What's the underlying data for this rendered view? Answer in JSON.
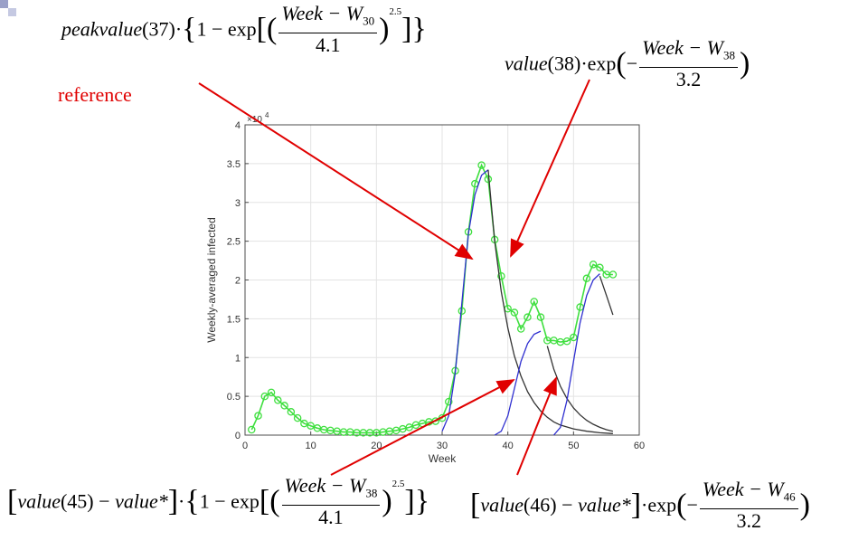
{
  "annotations": {
    "f1": {
      "fn": "peakvalue",
      "arg": "(37)",
      "dot": "·",
      "one_minus": "1 − exp",
      "frac_num_a": "Week",
      "frac_num_b": "− W",
      "frac_num_sub": "30",
      "frac_den": "4.1",
      "exponent": "2.5"
    },
    "f2": {
      "fn": "value",
      "arg": "(38)",
      "dot": "·",
      "exp": "exp",
      "neg": "−",
      "frac_num_a": "Week",
      "frac_num_b": "− W",
      "frac_num_sub": "38",
      "frac_den": "3.2"
    },
    "f3": {
      "fn_a": "value",
      "arg_a": "(45)",
      "minus": " − ",
      "fn_b": "value*",
      "dot": "·",
      "one_minus": "1 − exp",
      "frac_num_a": "Week",
      "frac_num_b": "− W",
      "frac_num_sub": "38",
      "frac_den": "4.1",
      "exponent": "2.5"
    },
    "f4": {
      "fn_a": "value",
      "arg_a": "(46)",
      "minus": " − ",
      "fn_b": "value*",
      "dot": "·",
      "exp": "exp",
      "neg": "−",
      "frac_num_a": "Week",
      "frac_num_b": "− W",
      "frac_num_sub": "46",
      "frac_den": "3.2"
    },
    "reference": "reference"
  },
  "colors": {
    "data_line": "#3fdf3f",
    "fit_blue": "#2f2fd0",
    "fit_black": "#333333",
    "arrow_red": "#e00000"
  },
  "chart_data": {
    "type": "line",
    "xlabel": "Week",
    "ylabel": "Weekly-averaged infected",
    "y_exponent_label": "×10",
    "y_exponent_power": "4",
    "xlim": [
      0,
      60
    ],
    "ylim": [
      0,
      4
    ],
    "y_unit_multiplier": 10000,
    "xticks": [
      0,
      10,
      20,
      30,
      40,
      50,
      60
    ],
    "yticks": [
      0,
      0.5,
      1,
      1.5,
      2,
      2.5,
      3,
      3.5,
      4
    ],
    "ytick_labels": [
      "0",
      "0.5",
      "1",
      "1.5",
      "2",
      "2.5",
      "3",
      "3.5",
      "4"
    ],
    "grid": true,
    "series": [
      {
        "style": "markers",
        "x": [
          1,
          2,
          3,
          4,
          5,
          6,
          7,
          8,
          9,
          10,
          11,
          12,
          13,
          14,
          15,
          16,
          17,
          18,
          19,
          20,
          21,
          22,
          23,
          24,
          25,
          26,
          27,
          28,
          29,
          30,
          31,
          32,
          33,
          34,
          35,
          36,
          37,
          38,
          39,
          40,
          41,
          42,
          43,
          44,
          45,
          46,
          47,
          48,
          49,
          50,
          51,
          52,
          53,
          54,
          55,
          56
        ],
        "y": [
          0.07,
          0.25,
          0.5,
          0.55,
          0.45,
          0.38,
          0.3,
          0.22,
          0.15,
          0.12,
          0.09,
          0.07,
          0.06,
          0.05,
          0.04,
          0.04,
          0.03,
          0.03,
          0.03,
          0.03,
          0.04,
          0.05,
          0.06,
          0.08,
          0.1,
          0.13,
          0.15,
          0.17,
          0.18,
          0.22,
          0.43,
          0.83,
          1.6,
          2.62,
          3.24,
          3.48,
          3.3,
          2.52,
          2.05,
          1.63,
          1.58,
          1.37,
          1.52,
          1.72,
          1.52,
          1.22,
          1.22,
          1.2,
          1.21,
          1.26,
          1.65,
          2.02,
          2.2,
          2.16,
          2.07,
          2.07
        ]
      },
      {
        "style": "fit-rise",
        "x": [
          30,
          31,
          32,
          33,
          34,
          35,
          36,
          37
        ],
        "y": [
          0.05,
          0.25,
          0.8,
          1.7,
          2.6,
          3.1,
          3.35,
          3.42
        ]
      },
      {
        "style": "fit-decay",
        "x": [
          37,
          38,
          39,
          40,
          41,
          42,
          43,
          44,
          45,
          46,
          47,
          48,
          50,
          52,
          54,
          56
        ],
        "y": [
          3.42,
          2.5,
          1.85,
          1.38,
          1.02,
          0.76,
          0.56,
          0.42,
          0.31,
          0.23,
          0.17,
          0.13,
          0.08,
          0.05,
          0.03,
          0.02
        ]
      },
      {
        "style": "fit-rise",
        "x": [
          38,
          39,
          40,
          41,
          42,
          43,
          44,
          45
        ],
        "y": [
          0.0,
          0.05,
          0.25,
          0.6,
          0.95,
          1.18,
          1.3,
          1.34
        ]
      },
      {
        "style": "fit-decay",
        "x": [
          46,
          47,
          48,
          49,
          50,
          51,
          52,
          53,
          54,
          55,
          56
        ],
        "y": [
          1.15,
          0.85,
          0.63,
          0.47,
          0.35,
          0.26,
          0.19,
          0.14,
          0.1,
          0.07,
          0.05
        ]
      },
      {
        "style": "fit-rise",
        "x": [
          47,
          48,
          49,
          50,
          51,
          52,
          53,
          54
        ],
        "y": [
          0.0,
          0.1,
          0.45,
          0.95,
          1.45,
          1.8,
          2.0,
          2.08
        ]
      },
      {
        "style": "fit-decay",
        "x": [
          54,
          55,
          56
        ],
        "y": [
          2.05,
          1.8,
          1.55
        ]
      }
    ]
  }
}
